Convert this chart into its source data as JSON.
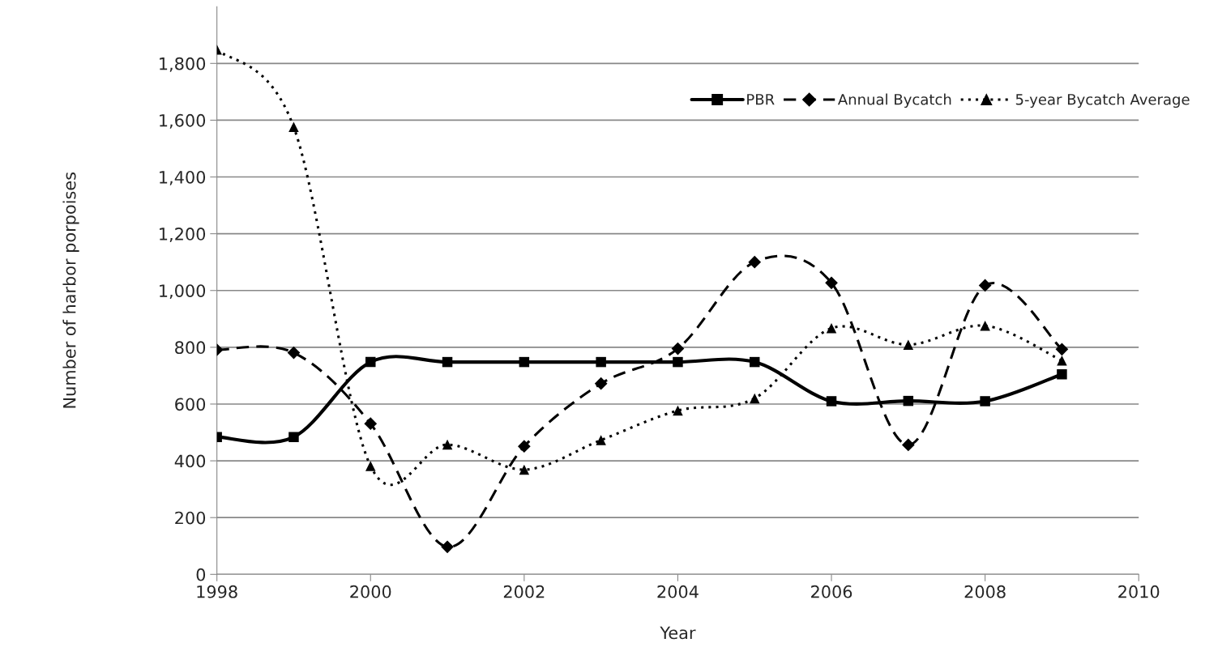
{
  "chart_data": {
    "type": "line",
    "xlabel": "Year",
    "ylabel": "Number of harbor porpoises",
    "x": [
      1998,
      1999,
      2000,
      2001,
      2002,
      2003,
      2004,
      2005,
      2006,
      2007,
      2008,
      2009
    ],
    "series": [
      {
        "name": "PBR",
        "color": "#000000",
        "marker": "square",
        "line_style": "solid",
        "values": [
          484,
          484,
          748,
          748,
          748,
          748,
          748,
          748,
          610,
          611,
          610,
          705
        ]
      },
      {
        "name": "Annual Bycatch",
        "color": "#000000",
        "marker": "diamond",
        "line_style": "dashed",
        "values": [
          791,
          781,
          531,
          97,
          451,
          672,
          795,
          1100,
          1027,
          456,
          1018,
          793
        ]
      },
      {
        "name": "5-year Bycatch Average",
        "color": "#000000",
        "marker": "triangle",
        "line_style": "dotted",
        "values": [
          1849,
          1576,
          382,
          457,
          369,
          473,
          577,
          620,
          867,
          809,
          876,
          753
        ]
      }
    ],
    "xlim": [
      1998,
      2010
    ],
    "xticks": [
      1998,
      2000,
      2002,
      2004,
      2006,
      2008,
      2010
    ],
    "ylim": [
      0,
      2000
    ],
    "yticks": [
      0,
      200,
      400,
      600,
      800,
      {
        "value": 1000,
        "label": "1,000"
      },
      {
        "value": 1200,
        "label": "1,200"
      },
      {
        "value": 1400,
        "label": "1,400"
      },
      {
        "value": 1600,
        "label": "1,600"
      },
      {
        "value": 1800,
        "label": "1,800"
      }
    ],
    "grid": "y",
    "legend": "top right"
  }
}
